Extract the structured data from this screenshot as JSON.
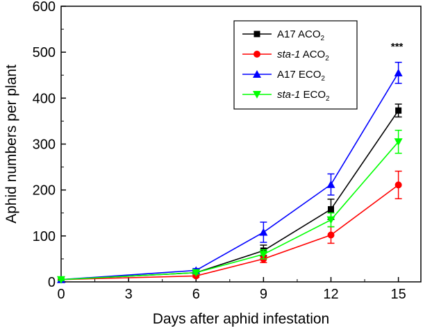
{
  "chart_data": {
    "type": "line",
    "xlabel": "Days after aphid infestation",
    "ylabel": "Aphid numbers per plant",
    "xlim": [
      0,
      16
    ],
    "ylim": [
      0,
      600
    ],
    "xticks": [
      0,
      3,
      6,
      9,
      12,
      15
    ],
    "yticks": [
      0,
      100,
      200,
      300,
      400,
      500,
      600
    ],
    "x": [
      0,
      6,
      9,
      12,
      15
    ],
    "grid": false,
    "legend_position": "top-right",
    "series": [
      {
        "name_main": "A17 ACO",
        "name_italic": "",
        "name_sub": "2",
        "color": "#000000",
        "marker": "square",
        "values": [
          5,
          20,
          68,
          158,
          373
        ],
        "errors": [
          2,
          3,
          12,
          22,
          14
        ]
      },
      {
        "name_main": " ACO",
        "name_italic": "sta-1",
        "name_sub": "2",
        "color": "#ff0000",
        "marker": "circle",
        "values": [
          5,
          13,
          50,
          102,
          211
        ],
        "errors": [
          2,
          3,
          8,
          18,
          30
        ]
      },
      {
        "name_main": "A17 ECO",
        "name_italic": "",
        "name_sub": "2",
        "color": "#0000ff",
        "marker": "triangle-up",
        "values": [
          5,
          25,
          108,
          212,
          455
        ],
        "errors": [
          2,
          4,
          22,
          23,
          23
        ]
      },
      {
        "name_main": " ECO",
        "name_italic": "sta-1",
        "name_sub": "2",
        "color": "#00ff00",
        "marker": "triangle-down",
        "values": [
          5,
          20,
          60,
          135,
          305
        ],
        "errors": [
          2,
          3,
          10,
          15,
          25
        ]
      }
    ],
    "annotations": [
      {
        "text": "***",
        "x": 15
      }
    ]
  }
}
